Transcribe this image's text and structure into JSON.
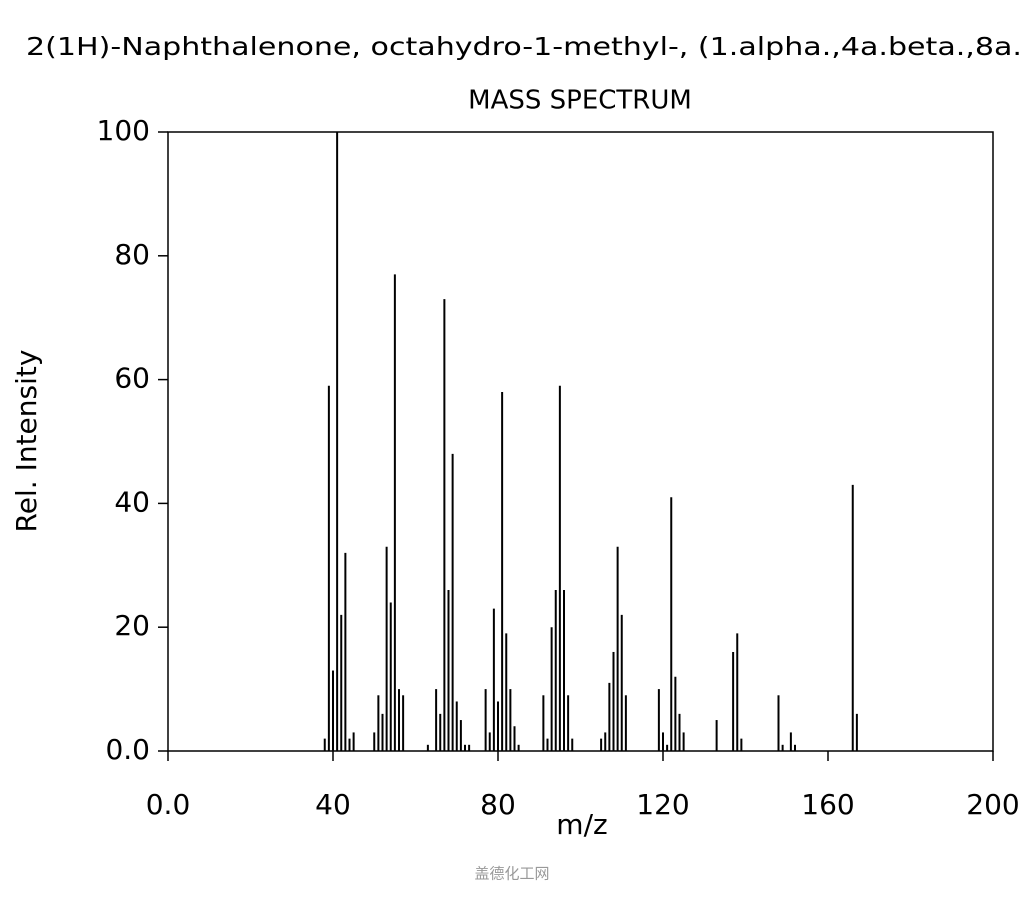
{
  "chart_data": {
    "type": "stem",
    "title": "2(1H)-Naphthalenone, octahydro-1-methyl-, (1.alpha.,4a.beta.,8a.",
    "subtitle": "MASS SPECTRUM",
    "x_label": "m/z",
    "y_label": "Rel. Intensity",
    "watermark": "盖德化工网",
    "color": "#000000",
    "x": [
      38,
      39,
      40,
      41,
      42,
      43,
      44,
      45,
      50,
      51,
      52,
      53,
      54,
      55,
      56,
      57,
      63,
      65,
      66,
      67,
      68,
      69,
      70,
      71,
      72,
      73,
      77,
      78,
      79,
      80,
      81,
      82,
      83,
      84,
      85,
      91,
      92,
      93,
      94,
      95,
      96,
      97,
      98,
      105,
      106,
      107,
      108,
      109,
      110,
      111,
      119,
      120,
      121,
      122,
      123,
      124,
      125,
      133,
      137,
      138,
      139,
      148,
      149,
      151,
      152,
      166,
      167
    ],
    "values": [
      2,
      59,
      13,
      100,
      22,
      32,
      2,
      3,
      3,
      9,
      6,
      33,
      24,
      77,
      10,
      9,
      1,
      10,
      6,
      73,
      26,
      48,
      8,
      5,
      1,
      1,
      10,
      3,
      23,
      8,
      58,
      19,
      10,
      4,
      1,
      9,
      2,
      20,
      26,
      59,
      26,
      9,
      2,
      2,
      3,
      11,
      16,
      33,
      22,
      9,
      10,
      3,
      1,
      41,
      12,
      6,
      3,
      5,
      16,
      19,
      2,
      9,
      1,
      3,
      1,
      43,
      6
    ],
    "xlim": [
      0,
      200
    ],
    "ylim": [
      0,
      100
    ],
    "xticks": [
      {
        "value": 0,
        "label": "0.0"
      },
      40,
      80,
      120,
      160,
      200
    ],
    "yticks": [
      {
        "value": 0,
        "label": "0.0"
      },
      20,
      40,
      60,
      80,
      100
    ]
  }
}
